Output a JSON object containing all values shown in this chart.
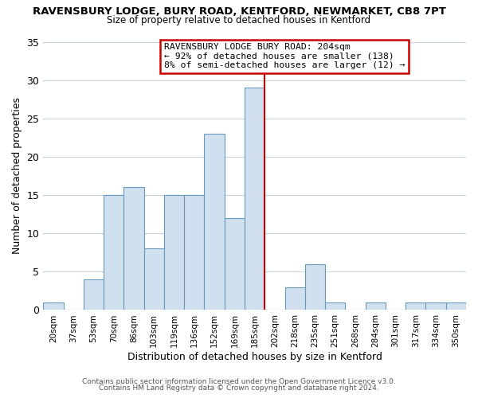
{
  "title": "RAVENSBURY LODGE, BURY ROAD, KENTFORD, NEWMARKET, CB8 7PT",
  "subtitle": "Size of property relative to detached houses in Kentford",
  "xlabel": "Distribution of detached houses by size in Kentford",
  "ylabel": "Number of detached properties",
  "bin_labels": [
    "20sqm",
    "37sqm",
    "53sqm",
    "70sqm",
    "86sqm",
    "103sqm",
    "119sqm",
    "136sqm",
    "152sqm",
    "169sqm",
    "185sqm",
    "202sqm",
    "218sqm",
    "235sqm",
    "251sqm",
    "268sqm",
    "284sqm",
    "301sqm",
    "317sqm",
    "334sqm",
    "350sqm"
  ],
  "bar_values": [
    1,
    0,
    4,
    15,
    16,
    8,
    15,
    15,
    23,
    12,
    29,
    0,
    3,
    6,
    1,
    0,
    1,
    0,
    1,
    1,
    1
  ],
  "bar_color": "#d0e0ef",
  "bar_edgecolor": "#6699bb",
  "vline_color": "#cc0000",
  "ylim": [
    0,
    35
  ],
  "yticks": [
    0,
    5,
    10,
    15,
    20,
    25,
    30,
    35
  ],
  "annotation_title": "RAVENSBURY LODGE BURY ROAD: 204sqm",
  "annotation_line1": "← 92% of detached houses are smaller (138)",
  "annotation_line2": "8% of semi-detached houses are larger (12) →",
  "annotation_box_edgecolor": "#cc0000",
  "footer_line1": "Contains HM Land Registry data © Crown copyright and database right 2024.",
  "footer_line2": "Contains public sector information licensed under the Open Government Licence v3.0.",
  "background_color": "#ffffff",
  "grid_color": "#c8d4e0"
}
